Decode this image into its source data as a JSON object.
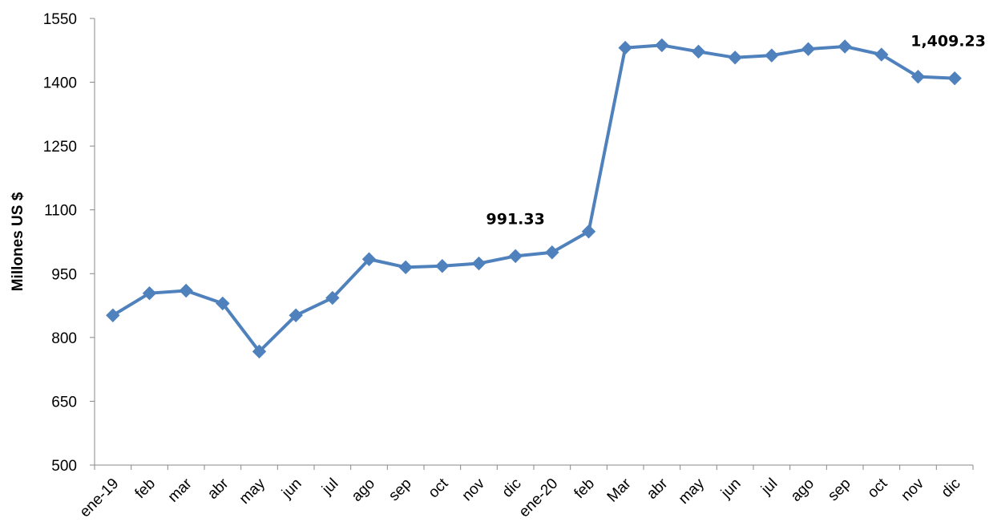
{
  "chart_data": {
    "type": "line",
    "ylabel": "Millones US $",
    "xlabel": "",
    "ylim": [
      500,
      1550
    ],
    "yticks": [
      500,
      650,
      800,
      950,
      1100,
      1250,
      1400,
      1550
    ],
    "grid": false,
    "legend": "none",
    "line_color": "#4F81BD",
    "categories": [
      "ene-19",
      "feb",
      "mar",
      "abr",
      "may",
      "jun",
      "jul",
      "ago",
      "sep",
      "oct",
      "nov",
      "dic",
      "ene-20",
      "feb",
      "Mar",
      "abr",
      "may",
      "jun",
      "jul",
      "ago",
      "sep",
      "oct",
      "nov",
      "dic"
    ],
    "series": [
      {
        "values": [
          852,
          904,
          910,
          880,
          767,
          852,
          893,
          984,
          965,
          968,
          974,
          991.33,
          1000,
          1049,
          1481,
          1487,
          1472,
          1458,
          1463,
          1478,
          1484,
          1465,
          1413,
          1409.23
        ]
      }
    ],
    "annotations": [
      {
        "index": 11,
        "text": "991.33"
      },
      {
        "index": 23,
        "text": "1,409.23"
      }
    ]
  }
}
